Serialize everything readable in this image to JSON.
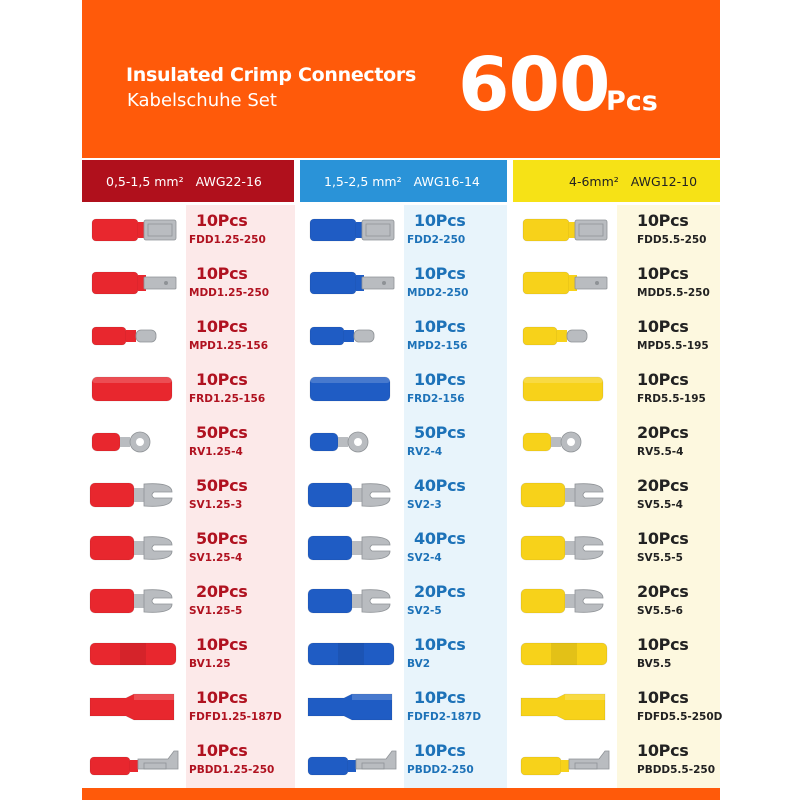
{
  "header": {
    "title": "Insulated Crimp Connectors",
    "subtitle": "Kabelschuhe Set",
    "count": "600",
    "count_unit": "Pcs"
  },
  "colors": {
    "banner": "#ff5a0a",
    "red": "#e8272e",
    "blue": "#1f5cc4",
    "yellow": "#f7d21a",
    "red_head": "#b0101c",
    "blue_head": "#2a93d8",
    "yellow_head": "#f6e216"
  },
  "columns": [
    {
      "id": "red",
      "mm": "0,5-1,5 mm²",
      "awg": "AWG22-16",
      "items": [
        {
          "qty": "10Pcs",
          "code": "FDD1.25-250",
          "shape": "female-disconnect"
        },
        {
          "qty": "10Pcs",
          "code": "MDD1.25-250",
          "shape": "male-disconnect"
        },
        {
          "qty": "10Pcs",
          "code": "MPD1.25-156",
          "shape": "bullet"
        },
        {
          "qty": "10Pcs",
          "code": "FRD1.25-156",
          "shape": "bullet-female"
        },
        {
          "qty": "50Pcs",
          "code": "RV1.25-4",
          "shape": "ring"
        },
        {
          "qty": "50Pcs",
          "code": "SV1.25-3",
          "shape": "spade"
        },
        {
          "qty": "50Pcs",
          "code": "SV1.25-4",
          "shape": "spade"
        },
        {
          "qty": "20Pcs",
          "code": "SV1.25-5",
          "shape": "spade"
        },
        {
          "qty": "10Pcs",
          "code": "BV1.25",
          "shape": "butt"
        },
        {
          "qty": "10Pcs",
          "code": "FDFD1.25-187D",
          "shape": "fully-insulated"
        },
        {
          "qty": "10Pcs",
          "code": "PBDD1.25-250",
          "shape": "piggyback"
        }
      ]
    },
    {
      "id": "blue",
      "mm": "1,5-2,5 mm²",
      "awg": "AWG16-14",
      "items": [
        {
          "qty": "10Pcs",
          "code": "FDD2-250",
          "shape": "female-disconnect"
        },
        {
          "qty": "10Pcs",
          "code": "MDD2-250",
          "shape": "male-disconnect"
        },
        {
          "qty": "10Pcs",
          "code": "MPD2-156",
          "shape": "bullet"
        },
        {
          "qty": "10Pcs",
          "code": "FRD2-156",
          "shape": "bullet-female"
        },
        {
          "qty": "50Pcs",
          "code": "RV2-4",
          "shape": "ring"
        },
        {
          "qty": "40Pcs",
          "code": "SV2-3",
          "shape": "spade"
        },
        {
          "qty": "40Pcs",
          "code": "SV2-4",
          "shape": "spade"
        },
        {
          "qty": "20Pcs",
          "code": "SV2-5",
          "shape": "spade"
        },
        {
          "qty": "10Pcs",
          "code": "BV2",
          "shape": "butt"
        },
        {
          "qty": "10Pcs",
          "code": "FDFD2-187D",
          "shape": "fully-insulated"
        },
        {
          "qty": "10Pcs",
          "code": "PBDD2-250",
          "shape": "piggyback"
        }
      ]
    },
    {
      "id": "yellow",
      "mm": "4-6mm²",
      "awg": "AWG12-10",
      "items": [
        {
          "qty": "10Pcs",
          "code": "FDD5.5-250",
          "shape": "female-disconnect"
        },
        {
          "qty": "10Pcs",
          "code": "MDD5.5-250",
          "shape": "male-disconnect"
        },
        {
          "qty": "10Pcs",
          "code": "MPD5.5-195",
          "shape": "bullet"
        },
        {
          "qty": "10Pcs",
          "code": "FRD5.5-195",
          "shape": "bullet-female"
        },
        {
          "qty": "20Pcs",
          "code": "RV5.5-4",
          "shape": "ring"
        },
        {
          "qty": "20Pcs",
          "code": "SV5.5-4",
          "shape": "spade"
        },
        {
          "qty": "10Pcs",
          "code": "SV5.5-5",
          "shape": "spade"
        },
        {
          "qty": "20Pcs",
          "code": "SV5.5-6",
          "shape": "spade"
        },
        {
          "qty": "10Pcs",
          "code": "BV5.5",
          "shape": "butt"
        },
        {
          "qty": "10Pcs",
          "code": "FDFD5.5-250D",
          "shape": "fully-insulated"
        },
        {
          "qty": "10Pcs",
          "code": "PBDD5.5-250",
          "shape": "piggyback"
        }
      ]
    }
  ]
}
